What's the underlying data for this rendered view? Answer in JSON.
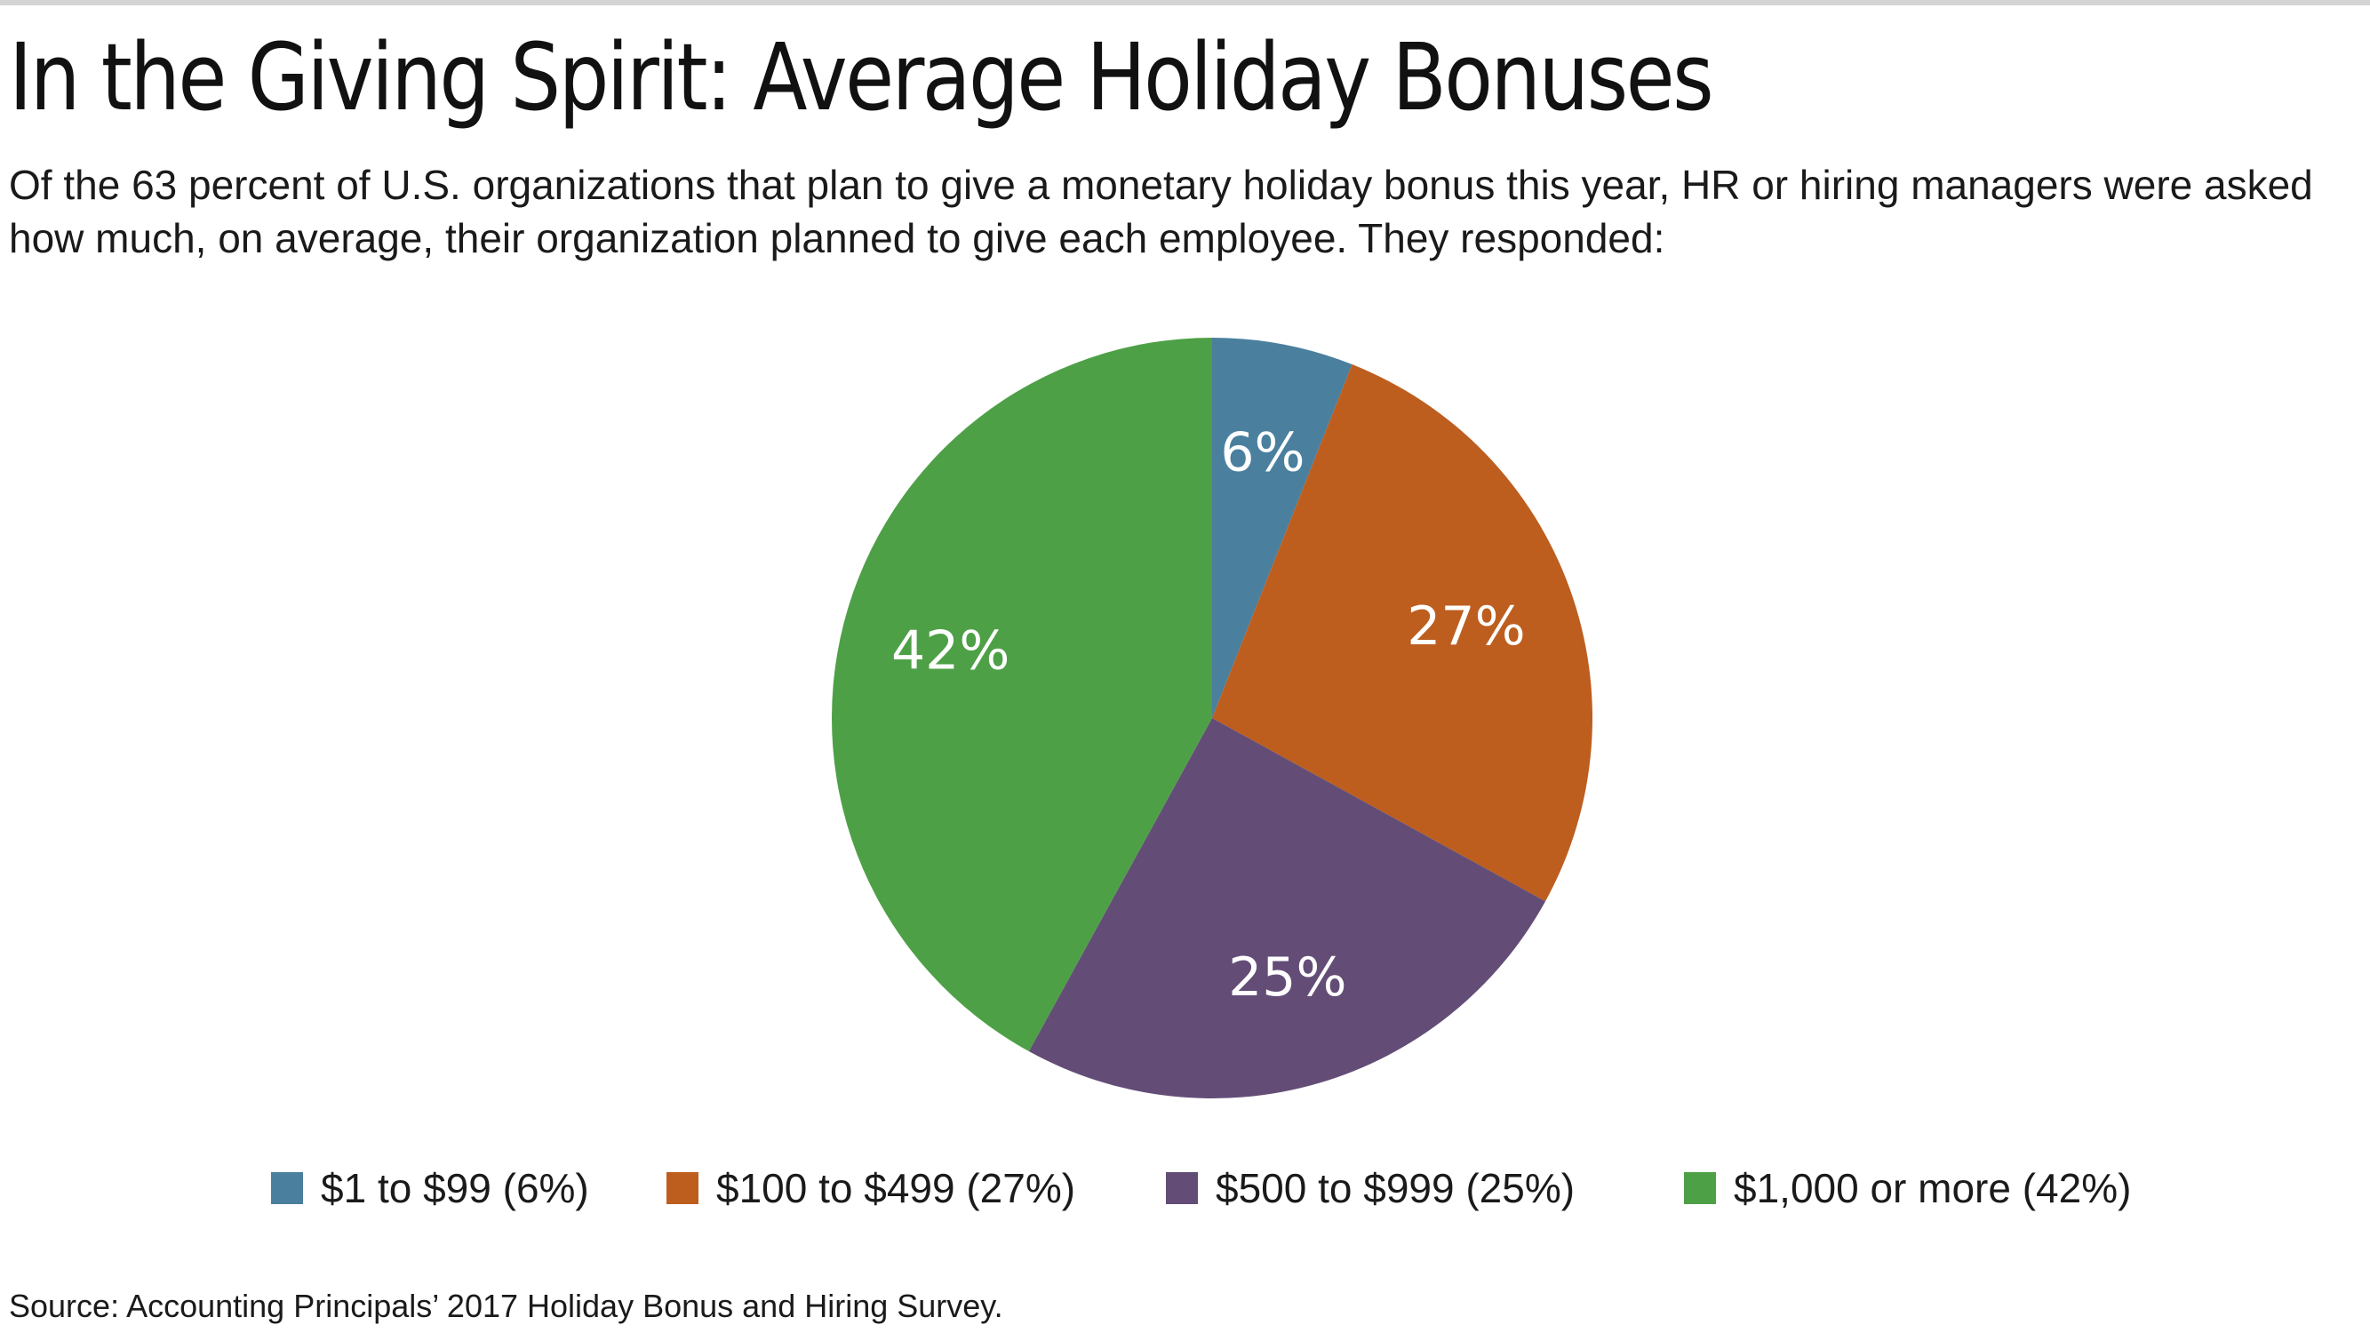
{
  "header": {
    "title": "In the Giving Spirit: Average Holiday Bonuses",
    "subtitle": "Of the 63 percent of U.S. organizations that plan to give a monetary holiday bonus this year, HR or hiring managers were asked how much, on average, their organization planned to give each employee. They responded:"
  },
  "chart_data": {
    "type": "pie",
    "title": "In the Giving Spirit: Average Holiday Bonuses",
    "start_angle_deg": 0,
    "direction": "clockwise",
    "slices": [
      {
        "label": "$1 to $99",
        "value": 6,
        "display": "6%",
        "color": "#4a7f9e",
        "legend": "$1 to $99 (6%)"
      },
      {
        "label": "$100 to $499",
        "value": 27,
        "display": "27%",
        "color": "#bd5e1f",
        "legend": "$100 to $499 (27%)"
      },
      {
        "label": "$500 to $999",
        "value": 25,
        "display": "25%",
        "color": "#634d77",
        "legend": "$500 to $999 (25%)"
      },
      {
        "label": "$1,000 or more",
        "value": 42,
        "display": "42%",
        "color": "#4ea046",
        "legend": "$1,000 or more (42%)"
      }
    ],
    "legend_position": "bottom"
  },
  "footer": {
    "source": "Source: Accounting Principals’ 2017 Holiday Bonus and Hiring Survey."
  }
}
